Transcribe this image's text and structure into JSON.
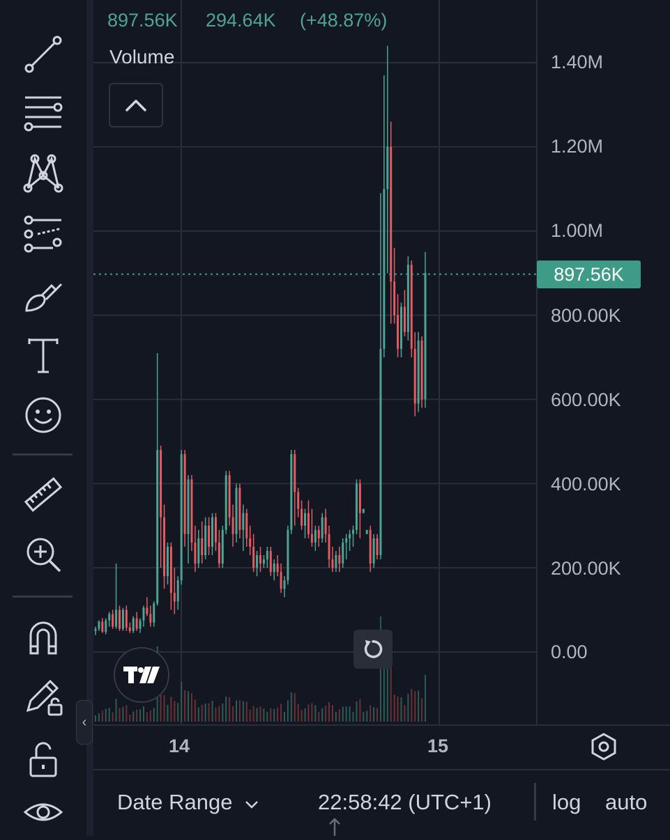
{
  "header": {
    "last_value": "897.56K",
    "change_value": "294.64K",
    "change_percent": "(+48.87%)",
    "color": "#4fa394"
  },
  "legend": {
    "volume_label": "Volume"
  },
  "price_scale": {
    "labels": [
      "1.40M",
      "1.20M",
      "1.00M",
      "800.00K",
      "600.00K",
      "400.00K",
      "200.00K",
      "0.00"
    ],
    "current_tag": "897.56K",
    "current_value": 897560,
    "tag_color": "#3e9b85"
  },
  "time_scale": {
    "labels": [
      "14",
      "15"
    ]
  },
  "bottom_bar": {
    "date_range": "Date Range",
    "clock": "22:58:42 (UTC+1)",
    "log": "log",
    "auto": "auto"
  },
  "colors": {
    "up": "#4fa394",
    "down": "#e45b63",
    "background": "#131722",
    "grid": "#2a2e39"
  },
  "chart_data": {
    "type": "candlestick",
    "ylim": [
      0,
      1400000
    ],
    "candles_ohlc": [
      [
        50000,
        60000,
        40000,
        55000
      ],
      [
        55000,
        75000,
        50000,
        72000
      ],
      [
        72000,
        80000,
        45000,
        48000
      ],
      [
        48000,
        80000,
        42000,
        75000
      ],
      [
        75000,
        95000,
        60000,
        90000
      ],
      [
        90000,
        100000,
        55000,
        60000
      ],
      [
        60000,
        210000,
        55000,
        100000
      ],
      [
        100000,
        110000,
        50000,
        55000
      ],
      [
        55000,
        105000,
        50000,
        100000
      ],
      [
        100000,
        110000,
        50000,
        58000
      ],
      [
        58000,
        70000,
        45000,
        50000
      ],
      [
        50000,
        85000,
        45000,
        80000
      ],
      [
        80000,
        95000,
        50000,
        55000
      ],
      [
        55000,
        80000,
        45000,
        75000
      ],
      [
        75000,
        110000,
        60000,
        105000
      ],
      [
        105000,
        130000,
        85000,
        90000
      ],
      [
        90000,
        110000,
        60000,
        70000
      ],
      [
        70000,
        120000,
        60000,
        115000
      ],
      [
        115000,
        710000,
        110000,
        480000
      ],
      [
        480000,
        490000,
        200000,
        320000
      ],
      [
        320000,
        350000,
        150000,
        180000
      ],
      [
        180000,
        260000,
        160000,
        250000
      ],
      [
        250000,
        260000,
        100000,
        140000
      ],
      [
        140000,
        200000,
        90000,
        120000
      ],
      [
        120000,
        180000,
        100000,
        170000
      ],
      [
        170000,
        480000,
        160000,
        470000
      ],
      [
        470000,
        480000,
        250000,
        280000
      ],
      [
        280000,
        420000,
        210000,
        410000
      ],
      [
        410000,
        420000,
        240000,
        260000
      ],
      [
        260000,
        300000,
        190000,
        210000
      ],
      [
        210000,
        290000,
        200000,
        270000
      ],
      [
        270000,
        310000,
        210000,
        230000
      ],
      [
        230000,
        320000,
        220000,
        300000
      ],
      [
        300000,
        320000,
        230000,
        250000
      ],
      [
        250000,
        330000,
        230000,
        320000
      ],
      [
        320000,
        330000,
        240000,
        260000
      ],
      [
        260000,
        290000,
        200000,
        210000
      ],
      [
        210000,
        300000,
        200000,
        290000
      ],
      [
        290000,
        430000,
        280000,
        420000
      ],
      [
        420000,
        430000,
        300000,
        320000
      ],
      [
        320000,
        350000,
        250000,
        280000
      ],
      [
        280000,
        400000,
        260000,
        390000
      ],
      [
        390000,
        400000,
        270000,
        290000
      ],
      [
        290000,
        350000,
        240000,
        330000
      ],
      [
        330000,
        340000,
        250000,
        270000
      ],
      [
        270000,
        300000,
        230000,
        250000
      ],
      [
        250000,
        280000,
        190000,
        200000
      ],
      [
        200000,
        240000,
        180000,
        230000
      ],
      [
        230000,
        250000,
        190000,
        210000
      ],
      [
        210000,
        230000,
        200000,
        220000
      ],
      [
        220000,
        250000,
        200000,
        240000
      ],
      [
        240000,
        250000,
        180000,
        190000
      ],
      [
        190000,
        220000,
        170000,
        210000
      ],
      [
        210000,
        230000,
        180000,
        190000
      ],
      [
        190000,
        210000,
        140000,
        150000
      ],
      [
        150000,
        180000,
        130000,
        170000
      ],
      [
        170000,
        300000,
        160000,
        290000
      ],
      [
        290000,
        480000,
        280000,
        470000
      ],
      [
        470000,
        480000,
        300000,
        380000
      ],
      [
        380000,
        390000,
        320000,
        340000
      ],
      [
        340000,
        360000,
        290000,
        300000
      ],
      [
        300000,
        340000,
        270000,
        330000
      ],
      [
        330000,
        360000,
        270000,
        280000
      ],
      [
        280000,
        340000,
        250000,
        260000
      ],
      [
        260000,
        300000,
        240000,
        290000
      ],
      [
        290000,
        300000,
        250000,
        270000
      ],
      [
        270000,
        330000,
        260000,
        320000
      ],
      [
        320000,
        340000,
        260000,
        280000
      ],
      [
        280000,
        300000,
        200000,
        220000
      ],
      [
        220000,
        250000,
        190000,
        200000
      ],
      [
        200000,
        240000,
        190000,
        230000
      ],
      [
        230000,
        250000,
        190000,
        210000
      ],
      [
        210000,
        270000,
        200000,
        260000
      ],
      [
        260000,
        280000,
        220000,
        270000
      ],
      [
        270000,
        290000,
        240000,
        280000
      ],
      [
        280000,
        300000,
        250000,
        290000
      ],
      [
        290000,
        410000,
        280000,
        400000
      ],
      [
        400000,
        410000,
        270000,
        330000
      ],
      [
        330000,
        340000
      ],
      [
        280000,
        290000
      ],
      [
        290000,
        300000,
        190000,
        210000
      ],
      [
        210000,
        280000,
        200000,
        270000
      ],
      [
        270000,
        280000,
        220000,
        230000
      ],
      [
        230000,
        1090000,
        220000,
        720000
      ],
      [
        720000,
        1370000,
        700000,
        1100000
      ],
      [
        1100000,
        1440000,
        900000,
        1200000
      ],
      [
        1200000,
        1260000,
        780000,
        880000
      ],
      [
        880000,
        960000,
        780000,
        800000
      ],
      [
        800000,
        850000,
        700000,
        720000
      ],
      [
        720000,
        830000,
        700000,
        820000
      ],
      [
        820000,
        860000,
        750000,
        760000
      ],
      [
        760000,
        940000,
        740000,
        920000
      ],
      [
        920000,
        930000,
        700000,
        720000
      ],
      [
        720000,
        760000,
        560000,
        590000
      ],
      [
        590000,
        760000,
        570000,
        740000
      ],
      [
        740000,
        750000,
        580000,
        600000
      ],
      [
        600000,
        950000,
        580000,
        900000
      ]
    ]
  }
}
